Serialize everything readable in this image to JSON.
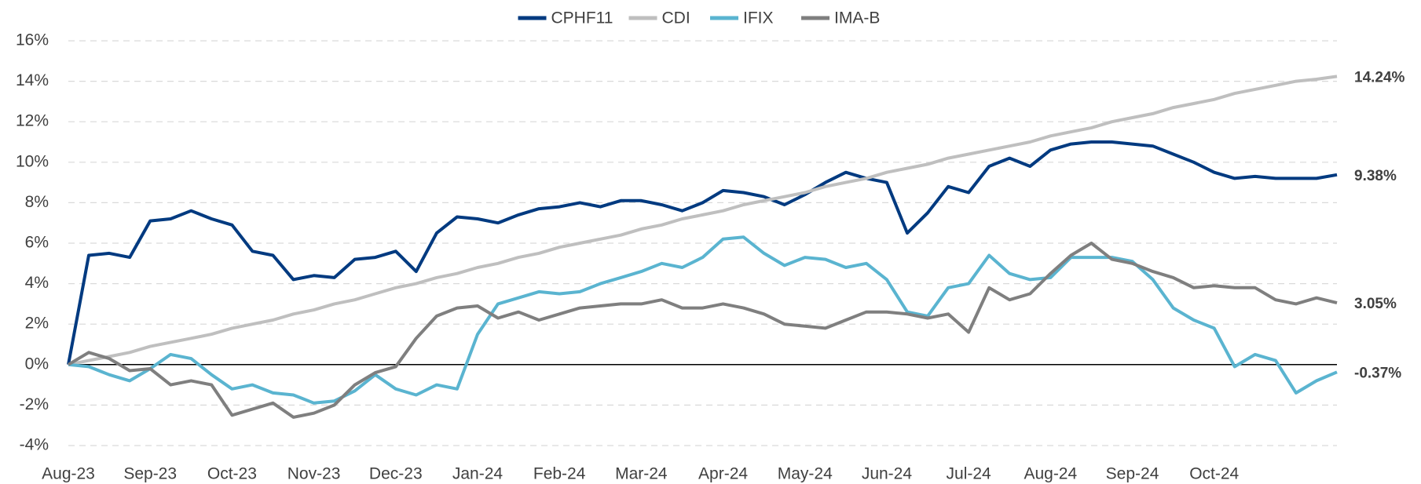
{
  "chart_data": {
    "type": "line",
    "categories": [
      "Aug-23",
      null,
      null,
      null,
      "Sep-23",
      null,
      null,
      null,
      "Oct-23",
      null,
      null,
      null,
      "Nov-23",
      null,
      null,
      null,
      "Dec-23",
      null,
      null,
      null,
      "Jan-24",
      null,
      null,
      null,
      "Feb-24",
      null,
      null,
      null,
      "Mar-24",
      null,
      null,
      null,
      "Apr-24",
      null,
      null,
      null,
      "May-24",
      null,
      null,
      null,
      "Jun-24",
      null,
      null,
      null,
      "Jul-24",
      null,
      null,
      null,
      "Aug-24",
      null,
      null,
      null,
      "Sep-24",
      null,
      null,
      null,
      "Oct-24",
      null,
      null,
      null,
      null,
      null,
      null
    ],
    "series": [
      {
        "name": "CPHF11",
        "color": "#003a80",
        "values": [
          0,
          5.4,
          5.5,
          5.3,
          7.1,
          7.2,
          7.6,
          7.2,
          6.9,
          5.6,
          5.4,
          4.2,
          4.4,
          4.3,
          5.2,
          5.3,
          5.6,
          4.6,
          6.5,
          7.3,
          7.2,
          7.0,
          7.4,
          7.7,
          7.8,
          8.0,
          7.8,
          8.1,
          8.1,
          7.9,
          7.6,
          8.0,
          8.6,
          8.5,
          8.3,
          7.9,
          8.4,
          9.0,
          9.5,
          9.2,
          9.0,
          6.5,
          7.5,
          8.8,
          8.5,
          9.8,
          10.2,
          9.8,
          10.6,
          10.9,
          11.0,
          11.0,
          10.9,
          10.8,
          10.4,
          10.0,
          9.5,
          9.2,
          9.3,
          9.2,
          9.2,
          9.2,
          9.38
        ],
        "value_labels": {
          "62": "9.38%"
        }
      },
      {
        "name": "CDI",
        "color": "#bfbfbf",
        "values": [
          0,
          0.2,
          0.4,
          0.6,
          0.9,
          1.1,
          1.3,
          1.5,
          1.8,
          2.0,
          2.2,
          2.5,
          2.7,
          3.0,
          3.2,
          3.5,
          3.8,
          4.0,
          4.3,
          4.5,
          4.8,
          5.0,
          5.3,
          5.5,
          5.8,
          6.0,
          6.2,
          6.4,
          6.7,
          6.9,
          7.2,
          7.4,
          7.6,
          7.9,
          8.1,
          8.3,
          8.5,
          8.8,
          9.0,
          9.2,
          9.5,
          9.7,
          9.9,
          10.2,
          10.4,
          10.6,
          10.8,
          11.0,
          11.3,
          11.5,
          11.7,
          12.0,
          12.2,
          12.4,
          12.7,
          12.9,
          13.1,
          13.4,
          13.6,
          13.8,
          14.0,
          14.1,
          14.24
        ],
        "value_labels": {
          "62": "14.24%"
        }
      },
      {
        "name": "IFIX",
        "color": "#5ab4d0",
        "values": [
          0,
          -0.1,
          -0.5,
          -0.8,
          -0.2,
          0.5,
          0.3,
          -0.5,
          -1.2,
          -1.0,
          -1.4,
          -1.5,
          -1.9,
          -1.8,
          -1.3,
          -0.5,
          -1.2,
          -1.5,
          -1.0,
          -1.2,
          1.5,
          3.0,
          3.3,
          3.6,
          3.5,
          3.6,
          4.0,
          4.3,
          4.6,
          5.0,
          4.8,
          5.3,
          6.2,
          6.3,
          5.5,
          4.9,
          5.3,
          5.2,
          4.8,
          5.0,
          4.2,
          2.6,
          2.4,
          3.8,
          4.0,
          5.4,
          4.5,
          4.2,
          4.3,
          5.3,
          5.3,
          5.3,
          5.1,
          4.2,
          2.8,
          2.2,
          1.8,
          -0.1,
          0.5,
          0.2,
          -1.4,
          -0.8,
          -0.37
        ],
        "value_labels": {
          "62": "-0.37%"
        }
      },
      {
        "name": "IMA-B",
        "color": "#7f7f7f",
        "values": [
          0,
          0.6,
          0.3,
          -0.3,
          -0.2,
          -1.0,
          -0.8,
          -1.0,
          -2.5,
          -2.2,
          -1.9,
          -2.6,
          -2.4,
          -2.0,
          -1.0,
          -0.4,
          -0.1,
          1.3,
          2.4,
          2.8,
          2.9,
          2.3,
          2.6,
          2.2,
          2.5,
          2.8,
          2.9,
          3.0,
          3.0,
          3.2,
          2.8,
          2.8,
          3.0,
          2.8,
          2.5,
          2.0,
          1.9,
          1.8,
          2.2,
          2.6,
          2.6,
          2.5,
          2.3,
          2.5,
          1.6,
          3.8,
          3.2,
          3.5,
          4.5,
          5.4,
          6.0,
          5.2,
          5.0,
          4.6,
          4.3,
          3.8,
          3.9,
          3.8,
          3.8,
          3.2,
          3.0,
          3.3,
          3.05
        ],
        "value_labels": {
          "62": "3.05%"
        }
      }
    ],
    "ylim": [
      -4,
      16
    ],
    "yticks": [
      {
        "value": -4,
        "label": "-4%"
      },
      {
        "value": -2,
        "label": "-2%"
      },
      {
        "value": 0,
        "label": "0%"
      },
      {
        "value": 2,
        "label": "2%"
      },
      {
        "value": 4,
        "label": "4%"
      },
      {
        "value": 6,
        "label": "6%"
      },
      {
        "value": 8,
        "label": "8%"
      },
      {
        "value": 10,
        "label": "10%"
      },
      {
        "value": 12,
        "label": "12%"
      },
      {
        "value": 14,
        "label": "14%"
      },
      {
        "value": 16,
        "label": "16%"
      }
    ],
    "grid": true,
    "legend": "top"
  }
}
